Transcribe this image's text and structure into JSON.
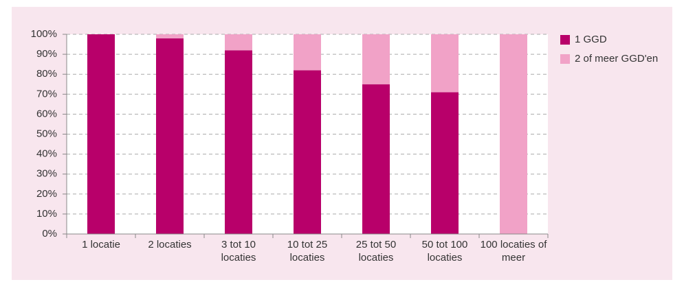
{
  "chart_data": {
    "type": "stacked_bar",
    "categories": [
      "1 locatie",
      "2 locaties",
      "3 tot 10 locaties",
      "10 tot 25 locaties",
      "25 tot 50 locaties",
      "50 tot 100 locaties",
      "100 locaties of meer"
    ],
    "series": [
      {
        "name": "1 GGD",
        "color": "#b8006a",
        "values": [
          100,
          98,
          92,
          82,
          75,
          71,
          0
        ]
      },
      {
        "name": "2 of meer GGD'en",
        "color": "#f1a2c7",
        "values": [
          0,
          2,
          8,
          18,
          25,
          29,
          100
        ]
      }
    ],
    "ylim": [
      0,
      100
    ],
    "yticks": [
      {
        "value": 0,
        "label": "0%"
      },
      {
        "value": 10,
        "label": "10%"
      },
      {
        "value": 20,
        "label": "20%"
      },
      {
        "value": 30,
        "label": "30%"
      },
      {
        "value": 40,
        "label": "40%"
      },
      {
        "value": 50,
        "label": "50%"
      },
      {
        "value": 60,
        "label": "60%"
      },
      {
        "value": 70,
        "label": "70%"
      },
      {
        "value": 80,
        "label": "80%"
      },
      {
        "value": 90,
        "label": "90%"
      },
      {
        "value": 100,
        "label": "100%"
      }
    ],
    "grid": true,
    "legend": "right"
  }
}
